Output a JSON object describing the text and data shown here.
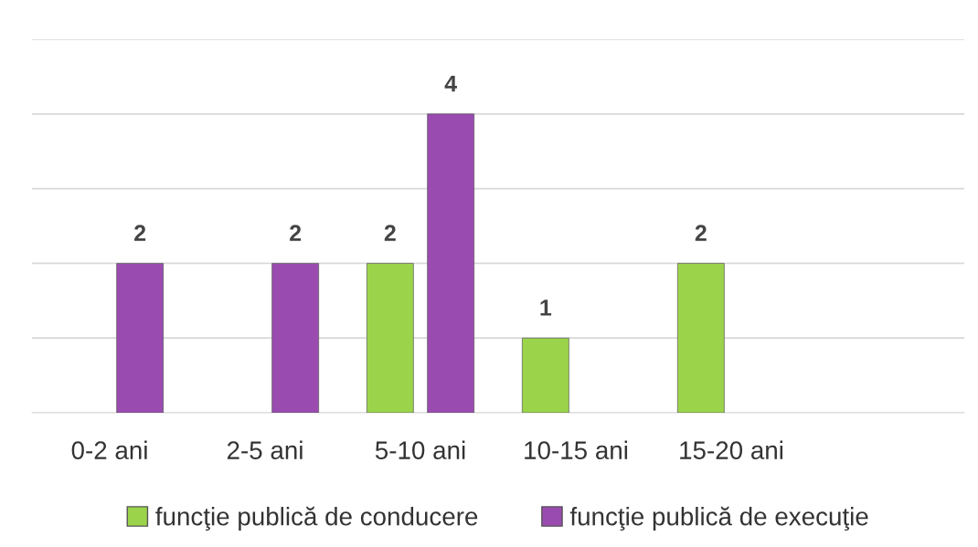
{
  "chart_data": {
    "type": "bar",
    "categories": [
      "0-2 ani",
      "2-5 ani",
      "5-10 ani",
      "10-15 ani",
      "15-20 ani",
      null
    ],
    "series": [
      {
        "name": "funcţie publică de conducere",
        "color": "#9bd44a",
        "values": [
          null,
          null,
          2,
          1,
          2,
          null
        ]
      },
      {
        "name": "funcţie publică de execuţie",
        "color": "#9a4bb0",
        "values": [
          2,
          2,
          4,
          null,
          null,
          null
        ]
      }
    ],
    "ylim": [
      0,
      5
    ],
    "yticks": [
      {
        "value": 0,
        "label": null
      },
      {
        "value": 1,
        "label": null
      },
      {
        "value": 2,
        "label": null
      },
      {
        "value": 3,
        "label": null
      },
      {
        "value": 4,
        "label": null
      },
      {
        "value": 5,
        "label": null
      }
    ],
    "tick_labels": "x",
    "grid": "y",
    "legend": "bottom",
    "data_labels": true
  }
}
